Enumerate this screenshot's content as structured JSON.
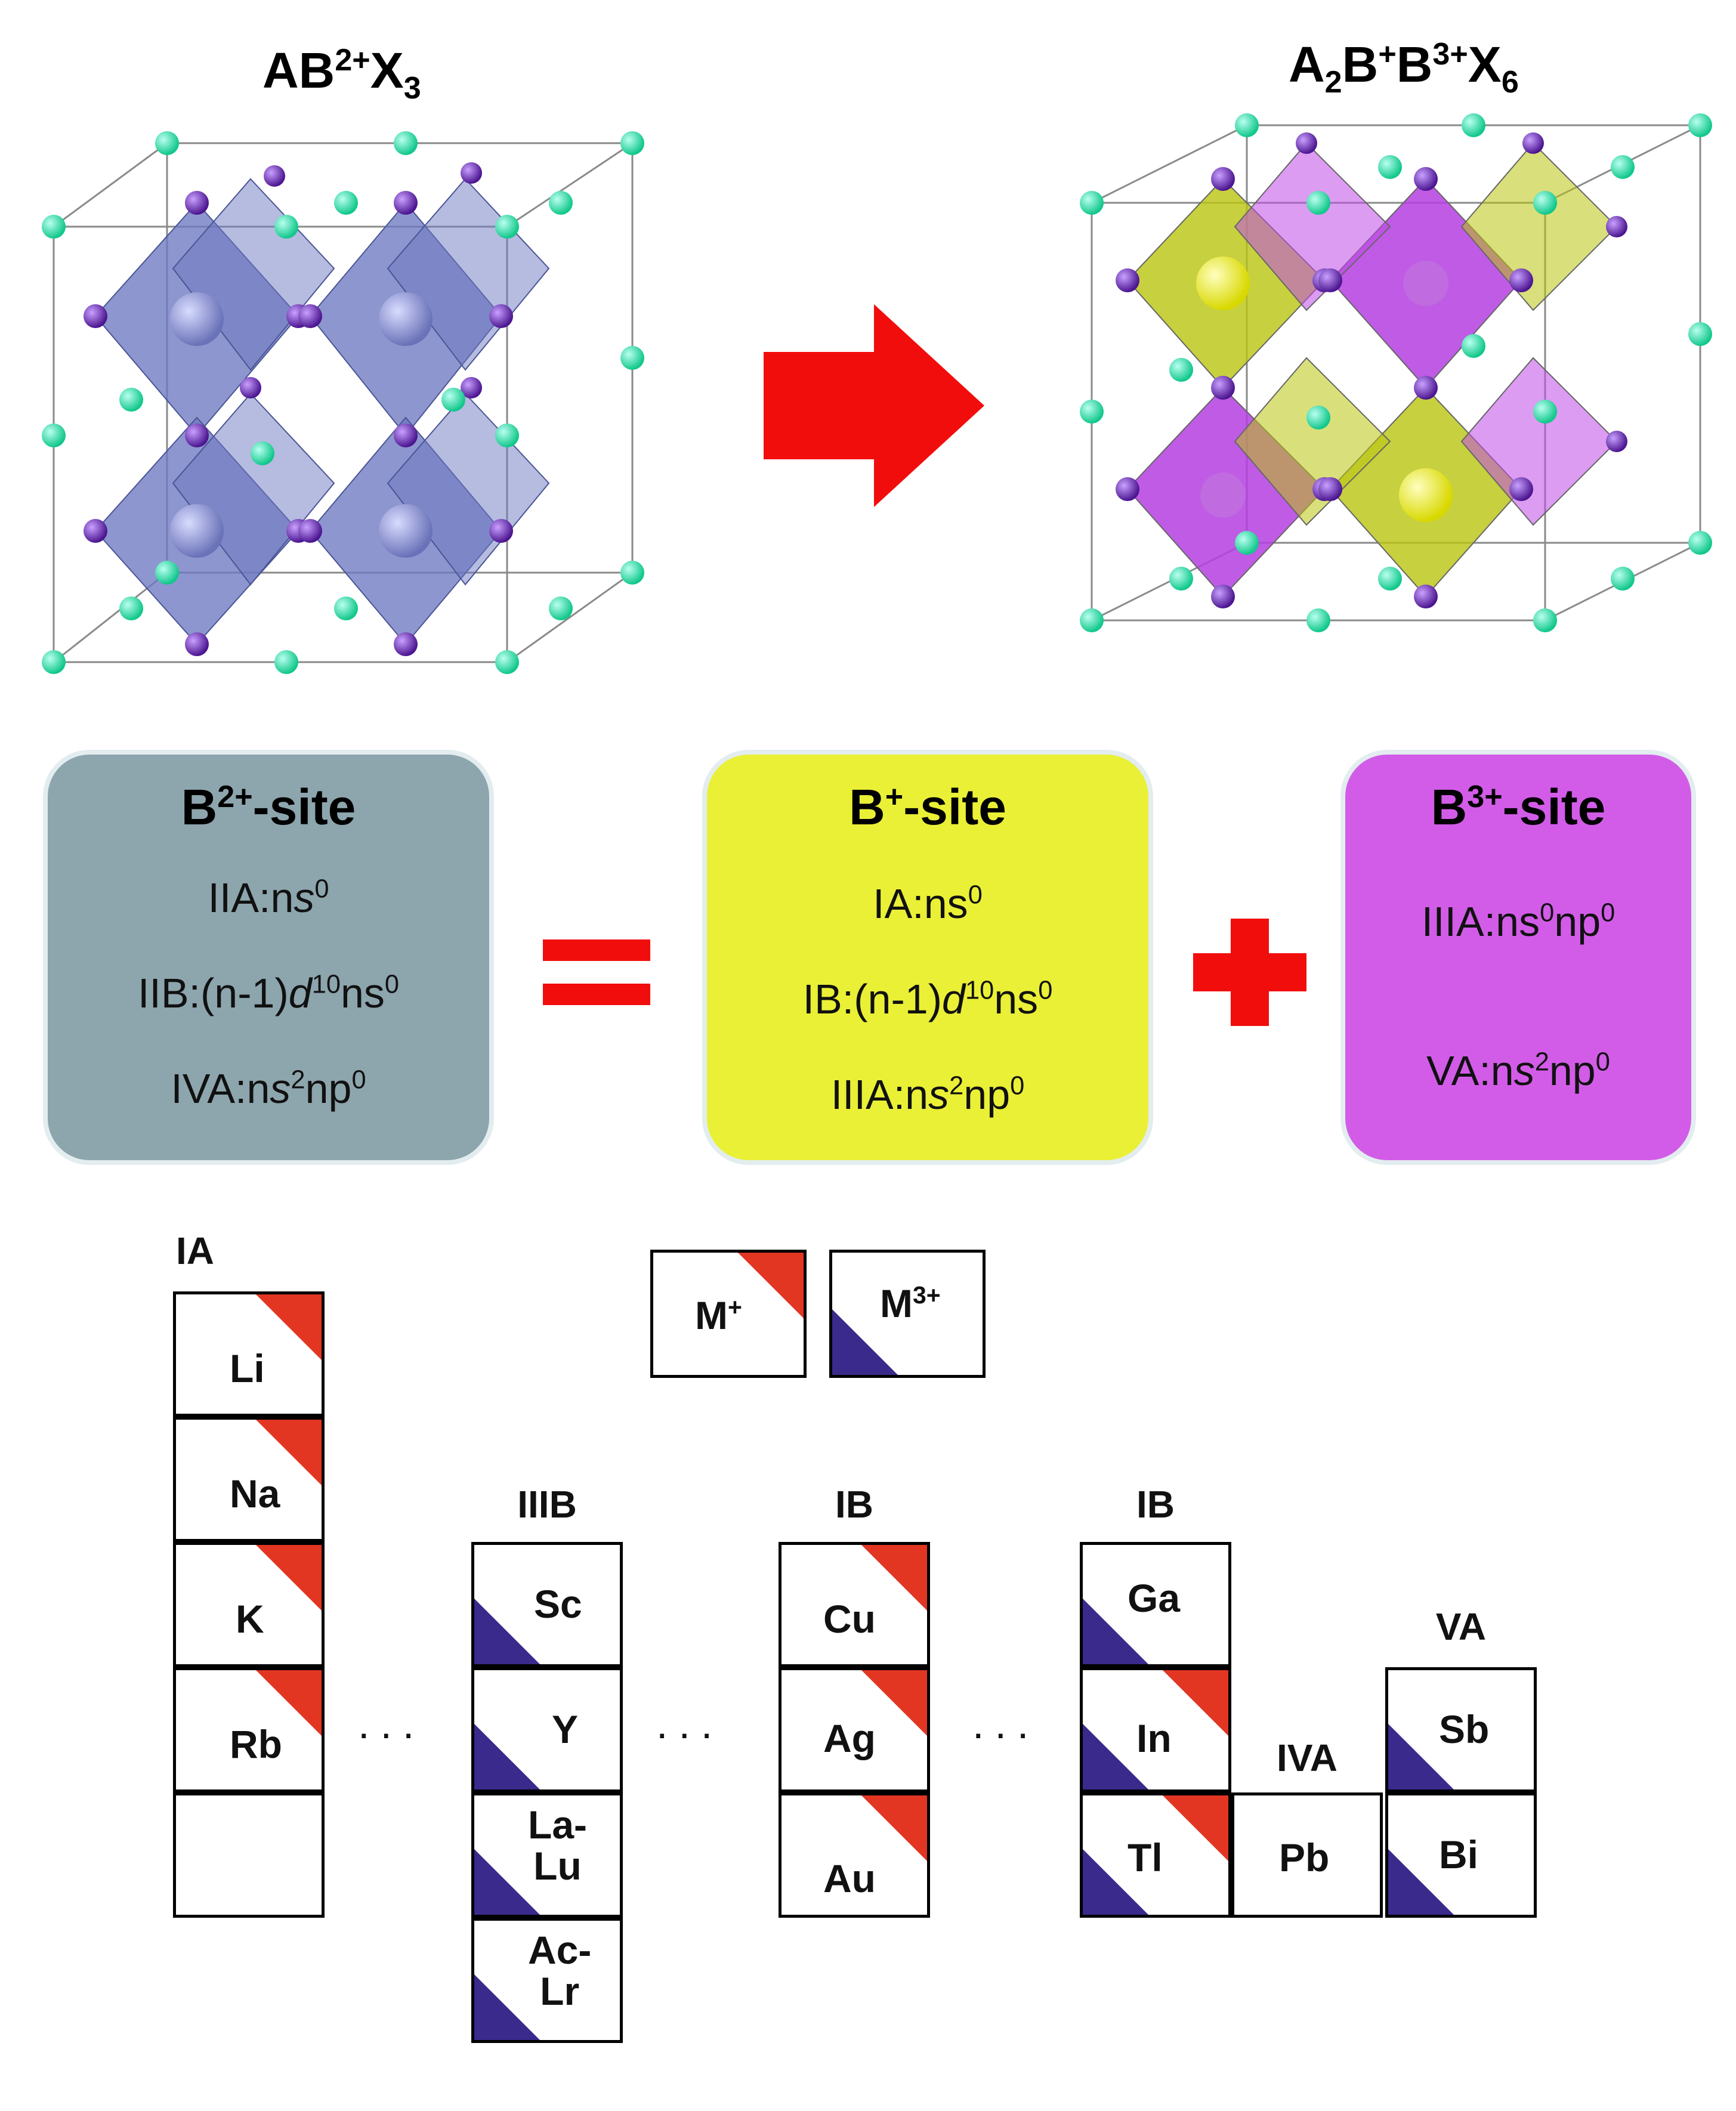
{
  "top": {
    "left_formula": {
      "A": "AB",
      "sup1": "2+",
      "X": "X",
      "sub1": "3"
    },
    "right_formula": {
      "A": "A",
      "sub1": "2",
      "B1": "B",
      "sup1": "+",
      "B2": "B",
      "sup2": "3+",
      "X": "X",
      "sub2": "6"
    }
  },
  "boxes": {
    "b2": {
      "title_main": "B",
      "title_sup": "2+",
      "title_rest": "-site",
      "lines": [
        {
          "pre": "IIA:n",
          "it": "s",
          "sup": "0",
          "post": ""
        },
        {
          "pre": "IIB:(n-1)",
          "it": "d",
          "sup": "10",
          "post": "ns",
          "sup2": "0"
        },
        {
          "pre": "IVA:n",
          "it": "s",
          "sup": "2",
          "post": "np",
          "sup2": "0"
        }
      ]
    },
    "b1": {
      "title_main": "B",
      "title_sup": "+",
      "title_rest": "-site",
      "lines": [
        {
          "pre": "IA:ns",
          "sup": "0"
        },
        {
          "pre": "IB:(n-1)",
          "it": "d",
          "sup": "10",
          "post": "ns",
          "sup2": "0"
        },
        {
          "pre": "IIIA:n",
          "it": "s",
          "sup": "2",
          "post": "np",
          "sup2": "0"
        }
      ]
    },
    "b3": {
      "title_main": "B",
      "title_sup": "3+",
      "title_rest": "-site",
      "lines": [
        {
          "pre": "IIIA:ns",
          "sup": "0",
          "post": "np",
          "sup2": "0"
        },
        {
          "pre": "VA:n",
          "it": "s",
          "sup": "2",
          "post": "np",
          "sup2": "0"
        }
      ]
    }
  },
  "legend": {
    "m_plus": "M",
    "m_plus_sup": "+",
    "m3_plus": "M",
    "m3_plus_sup": "3+"
  },
  "groups": {
    "ia": "IA",
    "iiib": "IIIB",
    "ib": "IB",
    "ib2": "IB",
    "iva": "IVA",
    "va": "VA"
  },
  "elements": {
    "li": "Li",
    "na": "Na",
    "k": "K",
    "rb": "Rb",
    "sc": "Sc",
    "y": "Y",
    "la": "La-\nLu",
    "ac": "Ac-\nLr",
    "cu": "Cu",
    "ag": "Ag",
    "au": "Au",
    "ga": "Ga",
    "in": "In",
    "tl": "Tl",
    "pb": "Pb",
    "sb": "Sb",
    "bi": "Bi"
  },
  "dots": "...",
  "colors": {
    "m_plus": "#e23623",
    "m3_plus": "#3a2a8c",
    "b2_box": "#8da5ad",
    "b1_box": "#eaf035",
    "b3_box": "#d25ce8",
    "arrow": "#f20d0d"
  }
}
